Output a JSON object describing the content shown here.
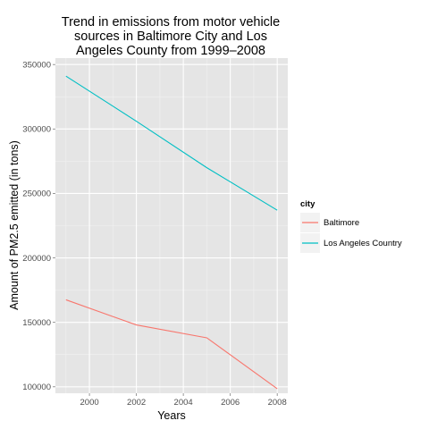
{
  "chart_data": {
    "type": "line",
    "title_lines": [
      "Trend in emissions from motor vehicle",
      "sources in Baltimore City and Los",
      "Angeles County from 1999–2008"
    ],
    "xlabel": "Years",
    "ylabel": "Amount of PM2.5 emitted (in tons)",
    "x_ticks": [
      2000,
      2002,
      2004,
      2006,
      2008
    ],
    "y_ticks": [
      100000,
      150000,
      200000,
      250000,
      300000,
      350000
    ],
    "x_tick_labels": [
      "2000",
      "2002",
      "2004",
      "2006",
      "2008"
    ],
    "y_tick_labels": [
      "100000",
      "150000",
      "200000",
      "250000",
      "300000",
      "350000"
    ],
    "xlim": [
      1998.55,
      2008.45
    ],
    "ylim": [
      95000,
      355000
    ],
    "grid": true,
    "legend": {
      "title": "city",
      "placement": "right",
      "entries": [
        "Baltimore",
        "Los Angeles Country"
      ]
    },
    "series": [
      {
        "name": "Baltimore",
        "color": "#f8766d",
        "x": [
          1999,
          2002,
          2005,
          2008
        ],
        "values": [
          167500,
          148000,
          138000,
          98500
        ]
      },
      {
        "name": "Los Angeles Country",
        "color": "#00bfc4",
        "x": [
          1999,
          2002,
          2005,
          2008
        ],
        "values": [
          341000,
          306000,
          270000,
          237000
        ]
      }
    ]
  }
}
